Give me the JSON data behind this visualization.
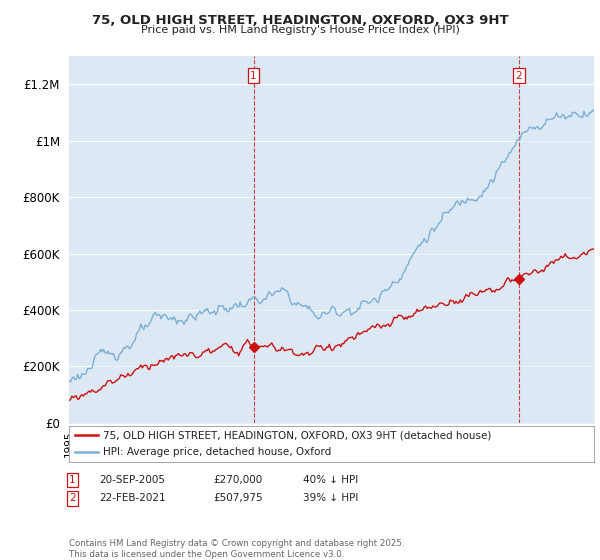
{
  "title_line1": "75, OLD HIGH STREET, HEADINGTON, OXFORD, OX3 9HT",
  "title_line2": "Price paid vs. HM Land Registry's House Price Index (HPI)",
  "ylim": [
    0,
    1300000
  ],
  "yticks": [
    0,
    200000,
    400000,
    600000,
    800000,
    1000000,
    1200000
  ],
  "ytick_labels": [
    "£0",
    "£200K",
    "£400K",
    "£600K",
    "£800K",
    "£1M",
    "£1.2M"
  ],
  "hpi_color": "#7bafd4",
  "hpi_fill": "#dce9f5",
  "price_color": "#cc1111",
  "marker1_year": 2005.72,
  "marker1_price": 270000,
  "marker2_year": 2021.13,
  "marker2_price": 507975,
  "legend_line1": "75, OLD HIGH STREET, HEADINGTON, OXFORD, OX3 9HT (detached house)",
  "legend_line2": "HPI: Average price, detached house, Oxford",
  "footer": "Contains HM Land Registry data © Crown copyright and database right 2025.\nThis data is licensed under the Open Government Licence v3.0.",
  "background_color": "#dce9f5",
  "grid_color": "#ffffff"
}
